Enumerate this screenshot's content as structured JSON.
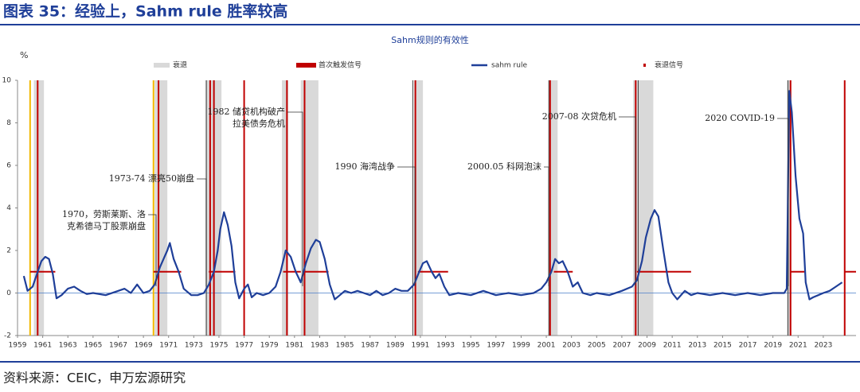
{
  "header": {
    "title": "图表 35：经验上，Sahm rule 胜率较高"
  },
  "footer": {
    "source": "资料来源：CEIC，申万宏源研究"
  },
  "chart_data": {
    "type": "line",
    "title": "Sahm规则的有效性",
    "y_label": "%",
    "xlim": [
      1959,
      2025.6
    ],
    "ylim": [
      -2,
      10
    ],
    "yticks": [
      -2,
      0,
      2,
      4,
      6,
      8,
      10
    ],
    "xticks": [
      1959,
      1961,
      1963,
      1965,
      1967,
      1969,
      1971,
      1973,
      1975,
      1977,
      1979,
      1981,
      1983,
      1985,
      1987,
      1989,
      1991,
      1993,
      1995,
      1997,
      1999,
      2001,
      2003,
      2005,
      2007,
      2009,
      2011,
      2013,
      2015,
      2017,
      2019,
      2021,
      2023
    ],
    "recessions": {
      "name": "衰退",
      "color": "#d9d9d9",
      "ranges": [
        [
          1960.3,
          1961.1
        ],
        [
          1969.9,
          1970.9
        ],
        [
          1973.9,
          1975.2
        ],
        [
          1980.0,
          1980.5
        ],
        [
          1981.5,
          1982.9
        ],
        [
          1990.5,
          1991.2
        ],
        [
          2001.2,
          2001.9
        ],
        [
          2007.9,
          2009.5
        ],
        [
          2020.1,
          2020.4
        ]
      ]
    },
    "first_trigger": {
      "name": "首次触发信号",
      "color": "#c00000",
      "value": 1,
      "ranges": [
        [
          1960.0,
          1962.0
        ],
        [
          1969.8,
          1972.0
        ],
        [
          1974.2,
          1976.3
        ],
        [
          1980.1,
          1981.5
        ],
        [
          1981.8,
          1983.7
        ],
        [
          1990.8,
          1993.2
        ],
        [
          2001.6,
          2003.1
        ],
        [
          2008.2,
          2012.5
        ],
        [
          2020.4,
          2021.5
        ],
        [
          2024.7,
          2025.6
        ]
      ]
    },
    "series": [
      {
        "name": "sahm rule",
        "color": "#1f3f99",
        "x": [
          1959.5,
          1959.8,
          1960.2,
          1960.6,
          1960.9,
          1961.2,
          1961.5,
          1961.8,
          1962.1,
          1962.5,
          1963,
          1963.5,
          1964,
          1964.5,
          1965,
          1966,
          1967,
          1967.5,
          1968,
          1968.5,
          1969,
          1969.5,
          1969.9,
          1970.3,
          1970.6,
          1970.9,
          1971.1,
          1971.4,
          1971.8,
          1972.2,
          1972.8,
          1973.3,
          1973.8,
          1974.2,
          1974.6,
          1974.9,
          1975.1,
          1975.4,
          1975.7,
          1976.0,
          1976.3,
          1976.6,
          1977.0,
          1977.3,
          1977.6,
          1978,
          1978.5,
          1979,
          1979.5,
          1979.9,
          1980.3,
          1980.7,
          1981.1,
          1981.5,
          1981.9,
          1982.3,
          1982.7,
          1983.0,
          1983.4,
          1983.8,
          1984.2,
          1984.6,
          1985,
          1985.5,
          1986,
          1986.5,
          1987,
          1987.5,
          1988,
          1988.5,
          1989,
          1989.5,
          1990.0,
          1990.5,
          1990.9,
          1991.2,
          1991.5,
          1991.9,
          1992.2,
          1992.5,
          1992.9,
          1993.3,
          1994,
          1995,
          1996,
          1997,
          1998,
          1999,
          2000.0,
          2000.6,
          2001.0,
          2001.4,
          2001.7,
          2002.0,
          2002.3,
          2002.7,
          2003.1,
          2003.5,
          2003.9,
          2004.5,
          2005,
          2006,
          2007,
          2007.8,
          2008.2,
          2008.6,
          2008.9,
          2009.3,
          2009.6,
          2009.9,
          2010.3,
          2010.7,
          2011.0,
          2011.4,
          2012,
          2012.5,
          2013,
          2014,
          2015,
          2016,
          2017,
          2018,
          2019,
          2019.9,
          2020.1,
          2020.3,
          2020.5,
          2020.8,
          2021.1,
          2021.4,
          2021.6,
          2021.9,
          2022.2,
          2022.6,
          2023.0,
          2023.5,
          2024.0,
          2024.5
        ],
        "values": [
          0.8,
          0.1,
          0.3,
          1.0,
          1.5,
          1.7,
          1.6,
          0.9,
          -0.25,
          -0.1,
          0.2,
          0.3,
          0.1,
          -0.05,
          0.0,
          -0.1,
          0.1,
          0.2,
          0.0,
          0.4,
          0.0,
          0.1,
          0.4,
          1.2,
          1.6,
          2.0,
          2.35,
          1.6,
          1.0,
          0.2,
          -0.1,
          -0.1,
          0.0,
          0.4,
          1.0,
          2.0,
          3.0,
          3.8,
          3.2,
          2.2,
          0.5,
          -0.25,
          0.2,
          0.4,
          -0.2,
          0.0,
          -0.1,
          0.0,
          0.3,
          1.0,
          2.0,
          1.7,
          1.0,
          0.5,
          1.4,
          2.1,
          2.5,
          2.4,
          1.6,
          0.4,
          -0.3,
          -0.1,
          0.1,
          0.0,
          0.1,
          0.0,
          -0.1,
          0.1,
          -0.1,
          0.0,
          0.2,
          0.1,
          0.1,
          0.4,
          1.0,
          1.4,
          1.5,
          1.0,
          0.7,
          0.9,
          0.3,
          -0.1,
          0.0,
          -0.1,
          0.1,
          -0.1,
          0.0,
          -0.1,
          0.0,
          0.2,
          0.5,
          1.0,
          1.6,
          1.4,
          1.5,
          1.0,
          0.3,
          0.5,
          0.0,
          -0.1,
          0.0,
          -0.1,
          0.1,
          0.3,
          0.6,
          1.5,
          2.6,
          3.5,
          3.9,
          3.6,
          2.0,
          0.5,
          0.0,
          -0.3,
          0.1,
          -0.1,
          0.0,
          -0.1,
          0.0,
          -0.1,
          0.0,
          -0.1,
          0.0,
          0.0,
          0.2,
          9.5,
          8.5,
          5.5,
          3.5,
          2.8,
          0.5,
          -0.3,
          -0.2,
          -0.1,
          0.0,
          0.1,
          0.3,
          0.5
        ]
      }
    ],
    "signals": {
      "name": "衰退信号",
      "color": "#c00000",
      "x": [
        1960.6,
        1970.2,
        1974.3,
        1974.6,
        1977.0,
        1980.4,
        1981.8,
        1990.6,
        2001.3,
        2008.1,
        2020.4,
        2024.7
      ]
    },
    "yellow_lines": {
      "color": "#f2b800",
      "x": [
        1960.0,
        1969.8
      ]
    },
    "dark_lines": {
      "color": "#444444",
      "x": [
        1974.0,
        1990.4,
        2001.2,
        2008.3,
        2020.2
      ]
    },
    "annotations": [
      {
        "lines": [
          "1970，劳斯莱斯、洛",
          "克希德马丁股票崩盘"
        ]
      },
      {
        "lines": [
          "1973-74 漂亮50崩盘"
        ]
      },
      {
        "lines": [
          "1982 储贷机构破产",
          "拉美债务危机"
        ]
      },
      {
        "lines": [
          "1990 海湾战争"
        ]
      },
      {
        "lines": [
          "2000.05 科网泡沫"
        ]
      },
      {
        "lines": [
          "2007-08 次贷危机"
        ]
      },
      {
        "lines": [
          "2020 COVID-19"
        ]
      }
    ]
  }
}
